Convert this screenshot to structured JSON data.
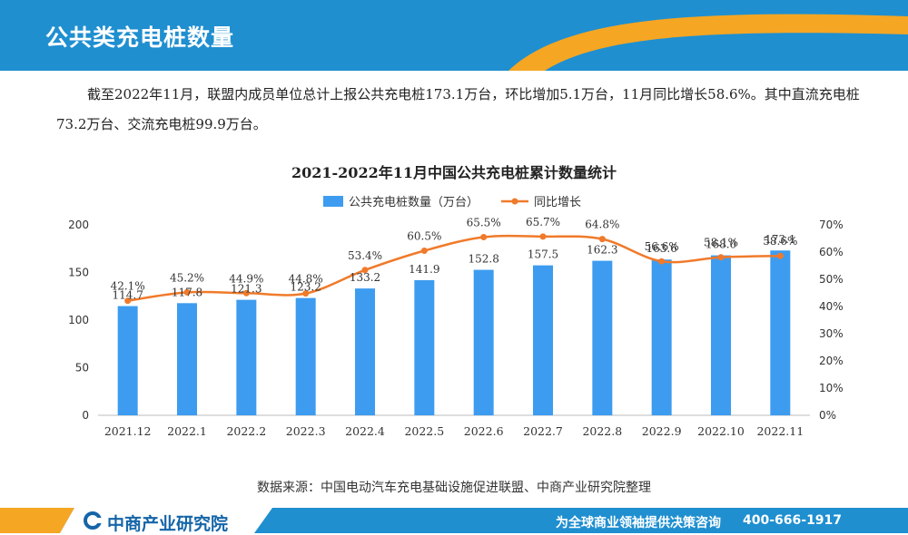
{
  "header": {
    "title": "公共类充电桩数量"
  },
  "paragraph": "截至2022年11月，联盟内成员单位总计上报公共充电桩173.1万台，环比增加5.1万台，11月同比增长58.6%。其中直流充电桩73.2万台、交流充电桩99.9万台。",
  "colors": {
    "header": "#1f8fd0",
    "accent": "#f5a623",
    "bar": "#3d9cf0",
    "line": "#f07a2a",
    "footer": "#1f8fd0"
  },
  "chart_data": {
    "type": "bar",
    "title": "2021-2022年11月中国公共充电桩累计数量统计",
    "categories": [
      "2021.12",
      "2022.1",
      "2022.2",
      "2022.3",
      "2022.4",
      "2022.5",
      "2022.6",
      "2022.7",
      "2022.8",
      "2022.9",
      "2022.10",
      "2022.11"
    ],
    "series": [
      {
        "name": "公共充电桩数量（万台）",
        "type": "bar",
        "axis": "left",
        "values": [
          114.7,
          117.8,
          121.3,
          123.2,
          133.2,
          141.9,
          152.8,
          157.5,
          162.3,
          163.6,
          168.0,
          173.1
        ],
        "labels": [
          "114.7",
          "117.8",
          "121.3",
          "123.2",
          "133.2",
          "141.9",
          "152.8",
          "157.5",
          "162.3",
          "163.6",
          "168.0",
          "173.1"
        ]
      },
      {
        "name": "同比增长",
        "type": "line",
        "axis": "right",
        "values": [
          42.1,
          45.2,
          44.9,
          44.8,
          53.4,
          60.5,
          65.5,
          65.7,
          64.8,
          56.6,
          58.1,
          58.6
        ],
        "labels": [
          "42.1%",
          "45.2%",
          "44.9%",
          "44.8%",
          "53.4%",
          "60.5%",
          "65.5%",
          "65.7%",
          "64.8%",
          "56.6%",
          "58.1%",
          "58.6%"
        ]
      }
    ],
    "yleft": {
      "min": 0,
      "max": 200,
      "ticks": [
        "0",
        "50",
        "100",
        "150",
        "200"
      ]
    },
    "yright": {
      "min": 0,
      "max": 70,
      "ticks": [
        "0%",
        "10%",
        "20%",
        "30%",
        "40%",
        "50%",
        "60%",
        "70%"
      ]
    },
    "legend": "top"
  },
  "source": "数据来源：中国电动汽车充电基础设施促进联盟、中商产业研究院整理",
  "footer": {
    "logo": "中商产业研究院",
    "slogan": "为全球商业领袖提供决策咨询",
    "phone": "400-666-1917"
  }
}
